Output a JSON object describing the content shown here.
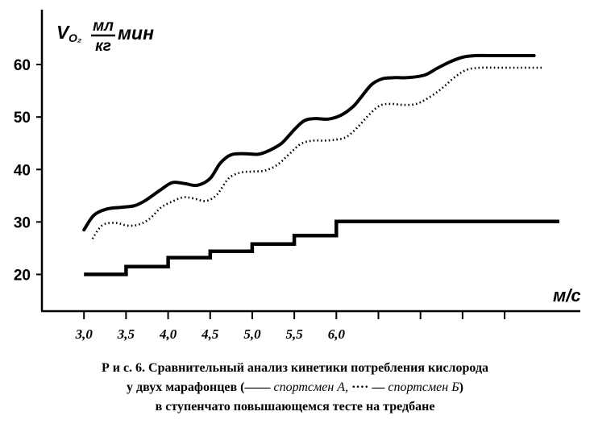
{
  "figure": {
    "caption_line1": "Р и с. 6.  Сравнительный анализ кинетики потребления кислорода",
    "caption_line2_a": "у двух марафонцев (",
    "caption_line2_solid_mark": "——",
    "caption_line2_athlete_a": " спортсмен А, ",
    "caption_line2_dotted_mark": "····",
    "caption_line2_dash": " — ",
    "caption_line2_athlete_b": "спортсмен Б",
    "caption_line2_end": ")",
    "caption_line3": "в ступенчато повышающемся тесте на тредбане"
  },
  "chart_data": {
    "type": "line",
    "title": "",
    "ylabel_main": "V",
    "ylabel_sub": "O₂",
    "ylabel_num": "мл",
    "ylabel_den": "кг",
    "ylabel_tail": "мин",
    "xlabel": "м/с",
    "ylim": [
      13,
      68
    ],
    "xlim": [
      2.5,
      8.9
    ],
    "y_ticks": [
      20,
      30,
      40,
      50,
      60
    ],
    "x_ticks": [
      "3,0",
      "3,5",
      "4,0",
      "4,5",
      "5,0",
      "5,5",
      "6,0"
    ],
    "x_tick_marks": [
      3.0,
      3.5,
      4.0,
      4.5,
      5.0,
      5.5,
      6.0,
      6.5,
      7.0,
      7.5,
      8.0
    ],
    "grid": false,
    "series": [
      {
        "style": "solid",
        "x": [
          3.0,
          3.12,
          3.28,
          3.45,
          3.6,
          3.72,
          3.9,
          4.05,
          4.2,
          4.35,
          4.5,
          4.62,
          4.75,
          4.92,
          5.07,
          5.2,
          5.35,
          5.5,
          5.62,
          5.75,
          5.9,
          6.05,
          6.2,
          6.3,
          6.42,
          6.55,
          6.7,
          6.85,
          7.05,
          7.2,
          7.35,
          7.5,
          7.65,
          7.82,
          7.98,
          8.15,
          8.35
        ],
        "y": [
          28.5,
          31.3,
          32.5,
          32.8,
          33.1,
          34.0,
          36.0,
          37.5,
          37.3,
          37.0,
          38.3,
          41.2,
          42.8,
          43.0,
          42.9,
          43.6,
          45.0,
          47.6,
          49.3,
          49.7,
          49.6,
          50.3,
          52.0,
          53.9,
          56.2,
          57.3,
          57.5,
          57.5,
          58.0,
          59.3,
          60.5,
          61.4,
          61.7,
          61.7,
          61.7,
          61.7,
          61.7
        ]
      },
      {
        "style": "dotted",
        "x": [
          3.1,
          3.22,
          3.38,
          3.52,
          3.65,
          3.78,
          3.92,
          4.05,
          4.18,
          4.3,
          4.45,
          4.58,
          4.72,
          4.86,
          5.0,
          5.15,
          5.3,
          5.45,
          5.58,
          5.72,
          5.86,
          6.0,
          6.12,
          6.25,
          6.38,
          6.52,
          6.66,
          6.8,
          6.95,
          7.1,
          7.25,
          7.4,
          7.55,
          7.72,
          7.9,
          8.08,
          8.25,
          8.45
        ],
        "y": [
          26.8,
          29.4,
          29.8,
          29.3,
          29.5,
          30.6,
          32.8,
          33.9,
          34.7,
          34.5,
          34.0,
          35.2,
          38.3,
          39.4,
          39.6,
          39.8,
          40.9,
          43.1,
          44.9,
          45.5,
          45.5,
          45.7,
          46.2,
          48.0,
          50.3,
          52.2,
          52.5,
          52.3,
          52.5,
          53.7,
          55.4,
          57.5,
          59.0,
          59.4,
          59.4,
          59.4,
          59.4,
          59.4
        ]
      },
      {
        "style": "step",
        "x": [
          3.0,
          3.5,
          4.0,
          4.5,
          5.0,
          5.5,
          6.0,
          6.5,
          7.0,
          7.5,
          8.0,
          8.65
        ],
        "y": [
          20.0,
          21.5,
          23.2,
          24.4,
          25.8,
          27.4,
          30.1,
          30.1,
          30.1,
          30.1,
          30.1,
          30.1
        ]
      }
    ]
  }
}
